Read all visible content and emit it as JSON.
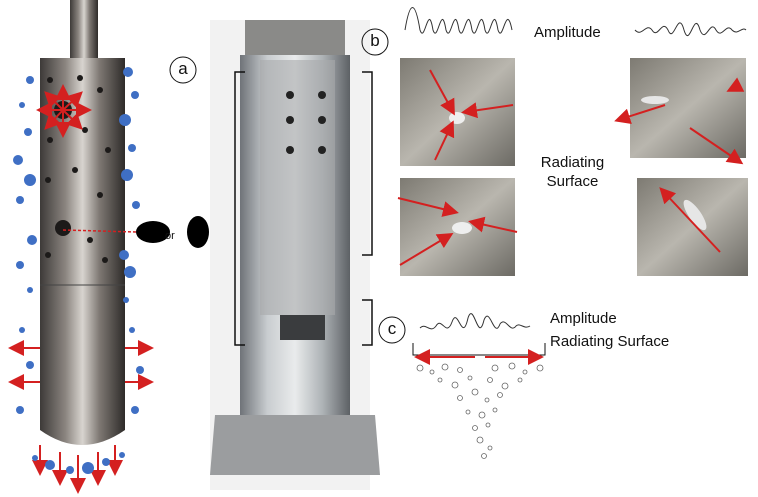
{
  "panels": {
    "a": {
      "label": "a",
      "or_text": "or"
    },
    "b": {
      "label": "b",
      "amplitude": "Amplitude",
      "radiating_surface": "Radiating Surface"
    },
    "c": {
      "label": "c",
      "amplitude": "Amplitude",
      "radiating_surface": "Radiating Surface"
    }
  }
}
